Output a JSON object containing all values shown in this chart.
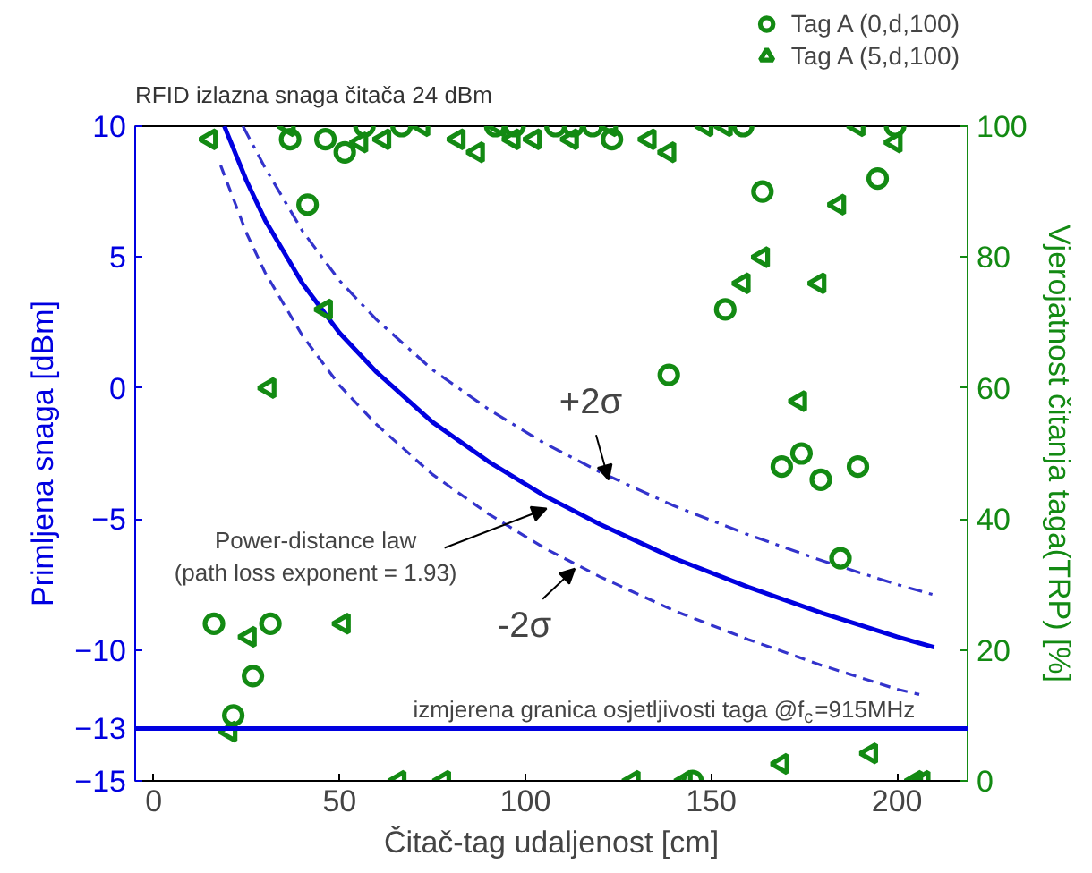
{
  "chart_data": {
    "type": "line",
    "xlabel": "Čitač-tag udaljenost [cm]",
    "ylabel": "Primljena snaga [dBm]",
    "y2label": "Vjerojatnost čitanja taga(TRP) [%]",
    "xlim": [
      -5,
      219
    ],
    "xticks": [
      0,
      50,
      100,
      150,
      200
    ],
    "ylim": [
      -15,
      10
    ],
    "yticks": [
      10,
      5,
      0,
      -5,
      -10,
      -13,
      -15
    ],
    "y2lim": [
      0,
      100
    ],
    "y2ticks": [
      0,
      20,
      40,
      60,
      80,
      100
    ],
    "grid": false,
    "legend": "top right",
    "series": [
      {
        "color": "#0000e0",
        "line_style": "solid",
        "x": [
          19,
          25,
          30,
          40,
          50,
          60,
          75,
          90,
          105,
          120,
          140,
          160,
          180,
          200,
          210
        ],
        "values": [
          10,
          7.9,
          6.4,
          4.0,
          2.1,
          0.6,
          -1.3,
          -2.8,
          -4.1,
          -5.2,
          -6.5,
          -7.6,
          -8.6,
          -9.5,
          -9.9
        ]
      },
      {
        "color": "#3333cc",
        "line_style": "dashdot",
        "x": [
          24,
          30,
          40,
          50,
          60,
          75,
          90,
          105,
          120,
          140,
          160,
          180,
          200,
          210
        ],
        "values": [
          10,
          8.4,
          6.0,
          4.1,
          2.6,
          0.7,
          -0.8,
          -2.1,
          -3.2,
          -4.5,
          -5.6,
          -6.6,
          -7.5,
          -7.9
        ]
      },
      {
        "color": "#3333cc",
        "line_style": "dashed",
        "x": [
          18,
          25,
          30,
          40,
          50,
          60,
          75,
          90,
          105,
          120,
          140,
          160,
          180,
          200,
          206
        ],
        "values": [
          8.5,
          5.9,
          4.4,
          2.0,
          0.1,
          -1.4,
          -3.3,
          -4.8,
          -6.1,
          -7.2,
          -8.5,
          -9.6,
          -10.6,
          -11.5,
          -11.7
        ]
      },
      {
        "type": "scatter",
        "name": "Tag A (0,d,100)",
        "color": "#138a13",
        "marker": "circle",
        "axis": "y2",
        "x": [
          36.7,
          46.2,
          51.4,
          56.7,
          66.7,
          41.4,
          91.9,
          97.1,
          108.1,
          112.9,
          118.1,
          123.3,
          158.6,
          199.5,
          163.8,
          194.8,
          153.8,
          138.6,
          16.2,
          31.4,
          26.7,
          21.4,
          169,
          174.3,
          179.5,
          189.5,
          184.8,
          145
        ],
        "values": [
          98,
          98,
          96,
          100,
          100,
          88,
          100,
          100,
          100,
          100,
          100,
          98,
          100,
          100,
          90,
          92,
          72,
          62,
          24,
          24,
          16,
          10,
          48,
          50,
          46,
          48,
          34,
          0
        ]
      },
      {
        "type": "scatter",
        "name": "Tag A (5,d,100)",
        "color": "#138a13",
        "marker": "triangle_left",
        "axis": "y2",
        "x": [
          15.2,
          36.2,
          55.7,
          61.9,
          72.4,
          81.9,
          87.1,
          92.9,
          96.7,
          102.4,
          112.4,
          122.9,
          133.3,
          138.6,
          148.6,
          153.8,
          189.5,
          199.5,
          184.3,
          163.8,
          158.6,
          179,
          173.8,
          46.2,
          31,
          25.7,
          51,
          20.5,
          169,
          192.9,
          66,
          78,
          129,
          143,
          205,
          207
        ],
        "values": [
          98,
          100,
          97.5,
          98,
          100,
          98,
          96,
          100,
          98,
          98,
          98,
          100,
          98,
          96,
          100,
          100,
          100,
          97.5,
          88,
          80,
          76,
          76,
          58,
          72,
          60,
          22,
          24,
          7.5,
          2.6,
          4.2,
          0,
          0,
          0,
          0,
          0,
          0
        ]
      }
    ],
    "ref_lines": [
      {
        "axis": "y",
        "value": -13,
        "color": "#0000e0"
      }
    ],
    "annotations": [
      "RFID izlazna snaga čitača 24 dBm",
      {
        "text": "Power-distance law\n(path loss exponent = 1.93)",
        "x": 105.7,
        "y": -4.6
      },
      {
        "text": "+2σ",
        "x": 122.4,
        "y": -3.5
      },
      {
        "text": "-2σ",
        "x": 113.3,
        "y": -6.9
      },
      {
        "text": "izmjerena granica osjetljivosti taga @f$_{c}$=915MHz",
        "x": 175,
        "y": -13
      }
    ]
  }
}
